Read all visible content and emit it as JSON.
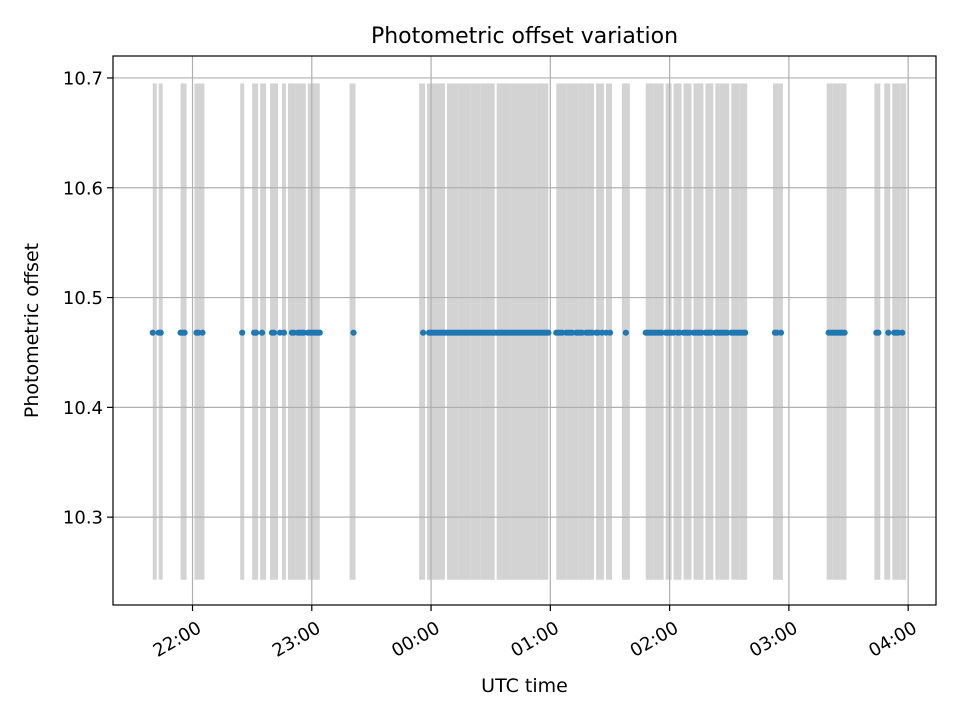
{
  "chart_data": {
    "type": "scatter",
    "title": "Photometric offset variation",
    "xlabel": "UTC time",
    "ylabel": "Photometric offset",
    "x_axis": {
      "kind": "time",
      "range": [
        "21:20",
        "04:14"
      ],
      "ticks": [
        "22:00",
        "23:00",
        "00:00",
        "01:00",
        "02:00",
        "03:00",
        "04:00"
      ]
    },
    "y_axis": {
      "range": [
        10.22,
        10.72
      ],
      "ticks": [
        "10.3",
        "10.4",
        "10.5",
        "10.6",
        "10.7"
      ]
    },
    "grid": true,
    "colors": {
      "points": "#1f77b4",
      "bands": "#d3d3d3",
      "grid": "#b0b0b0"
    },
    "band_y_range": [
      10.243,
      10.695
    ],
    "bands": [
      [
        "21:40",
        "21:42"
      ],
      [
        "21:43",
        "21:45"
      ],
      [
        "21:54",
        "21:57"
      ],
      [
        "22:01",
        "22:06"
      ],
      [
        "22:24",
        "22:26"
      ],
      [
        "22:30",
        "22:33"
      ],
      [
        "22:34",
        "22:37"
      ],
      [
        "22:39",
        "22:43"
      ],
      [
        "22:45",
        "22:47"
      ],
      [
        "22:48",
        "22:52"
      ],
      [
        "22:52",
        "22:57"
      ],
      [
        "22:58",
        "23:04"
      ],
      [
        "23:19",
        "23:22"
      ],
      [
        "23:54",
        "23:57"
      ],
      [
        "23:58",
        "00:02"
      ],
      [
        "00:02",
        "00:07"
      ],
      [
        "00:08",
        "00:14"
      ],
      [
        "00:14",
        "00:20"
      ],
      [
        "00:20",
        "00:25"
      ],
      [
        "00:25",
        "00:32"
      ],
      [
        "00:33",
        "00:40"
      ],
      [
        "00:40",
        "00:47"
      ],
      [
        "00:47",
        "00:53"
      ],
      [
        "00:53",
        "00:59"
      ],
      [
        "01:03",
        "01:08"
      ],
      [
        "01:08",
        "01:14"
      ],
      [
        "01:14",
        "01:18"
      ],
      [
        "01:18",
        "01:22"
      ],
      [
        "01:23",
        "01:27"
      ],
      [
        "01:28",
        "01:31"
      ],
      [
        "01:36",
        "01:40"
      ],
      [
        "01:48",
        "01:52"
      ],
      [
        "01:52",
        "01:57"
      ],
      [
        "01:58",
        "02:01"
      ],
      [
        "02:02",
        "02:06"
      ],
      [
        "02:07",
        "02:11"
      ],
      [
        "02:12",
        "02:17"
      ],
      [
        "02:18",
        "02:22"
      ],
      [
        "02:23",
        "02:25"
      ],
      [
        "02:25",
        "02:30"
      ],
      [
        "02:31",
        "02:35"
      ],
      [
        "02:35",
        "02:39"
      ],
      [
        "02:52",
        "02:55"
      ],
      [
        "02:55",
        "02:57"
      ],
      [
        "03:19",
        "03:22"
      ],
      [
        "03:22",
        "03:26"
      ],
      [
        "03:26",
        "03:29"
      ],
      [
        "03:43",
        "03:46"
      ],
      [
        "03:48",
        "03:51"
      ],
      [
        "03:52",
        "03:56"
      ],
      [
        "03:56",
        "03:59"
      ]
    ],
    "points": {
      "y": 10.468,
      "x": [
        "21:40",
        "21:43",
        "21:44",
        "21:54",
        "21:55",
        "21:56",
        "22:02",
        "22:03",
        "22:05",
        "22:25",
        "22:31",
        "22:32",
        "22:35",
        "22:40",
        "22:41",
        "22:44",
        "22:46",
        "22:50",
        "22:51",
        "22:53",
        "22:54",
        "22:55",
        "22:56",
        "22:58",
        "22:59",
        "23:00",
        "23:01",
        "23:02",
        "23:03",
        "23:04",
        "23:21",
        "23:56",
        "23:59",
        "00:00",
        "00:01",
        "00:02",
        "00:03",
        "00:04",
        "00:05",
        "00:06",
        "00:07",
        "00:08",
        "00:09",
        "00:10",
        "00:11",
        "00:12",
        "00:13",
        "00:14",
        "00:15",
        "00:16",
        "00:17",
        "00:18",
        "00:19",
        "00:20",
        "00:21",
        "00:22",
        "00:23",
        "00:24",
        "00:25",
        "00:26",
        "00:27",
        "00:28",
        "00:29",
        "00:30",
        "00:31",
        "00:32",
        "00:33",
        "00:34",
        "00:35",
        "00:36",
        "00:37",
        "00:38",
        "00:39",
        "00:40",
        "00:41",
        "00:42",
        "00:43",
        "00:44",
        "00:45",
        "00:46",
        "00:47",
        "00:48",
        "00:49",
        "00:50",
        "00:51",
        "00:52",
        "00:53",
        "00:54",
        "00:55",
        "00:56",
        "00:57",
        "00:58",
        "00:59",
        "01:03",
        "01:04",
        "01:05",
        "01:06",
        "01:08",
        "01:09",
        "01:10",
        "01:11",
        "01:13",
        "01:14",
        "01:15",
        "01:16",
        "01:18",
        "01:19",
        "01:20",
        "01:21",
        "01:23",
        "01:24",
        "01:26",
        "01:28",
        "01:30",
        "01:38",
        "01:48",
        "01:49",
        "01:50",
        "01:51",
        "01:52",
        "01:53",
        "01:54",
        "01:55",
        "01:56",
        "01:58",
        "01:59",
        "02:00",
        "02:01",
        "02:02",
        "02:04",
        "02:05",
        "02:07",
        "02:08",
        "02:09",
        "02:10",
        "02:12",
        "02:13",
        "02:14",
        "02:15",
        "02:16",
        "02:18",
        "02:19",
        "02:20",
        "02:21",
        "02:23",
        "02:24",
        "02:25",
        "02:26",
        "02:27",
        "02:28",
        "02:29",
        "02:31",
        "02:32",
        "02:33",
        "02:34",
        "02:35",
        "02:36",
        "02:37",
        "02:38",
        "02:53",
        "02:54",
        "02:56",
        "03:20",
        "03:21",
        "03:22",
        "03:23",
        "03:24",
        "03:25",
        "03:26",
        "03:27",
        "03:28",
        "03:44",
        "03:45",
        "03:50",
        "03:53",
        "03:54",
        "03:55",
        "03:57"
      ]
    }
  }
}
